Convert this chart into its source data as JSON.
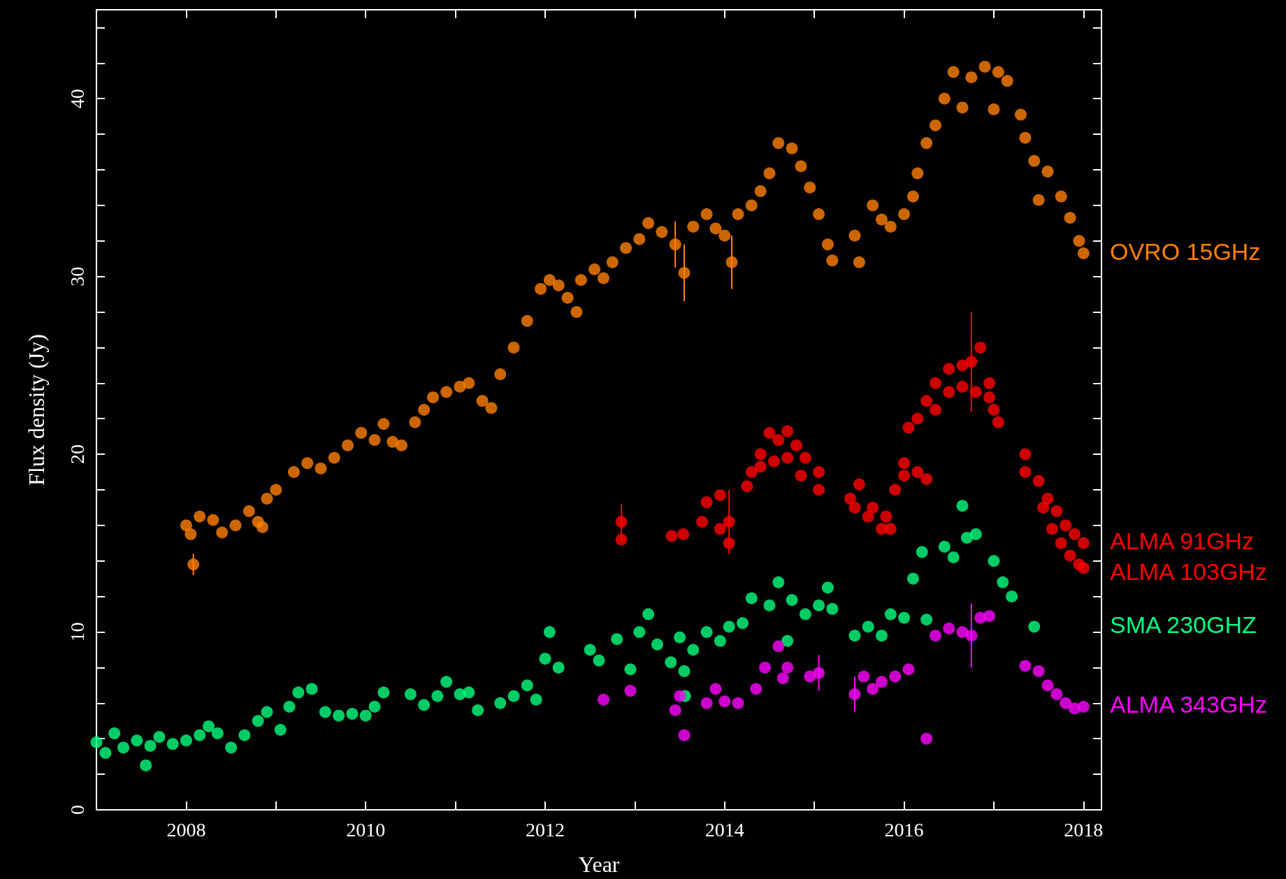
{
  "chart_data": {
    "type": "scatter",
    "xlabel": "Year",
    "ylabel": "Flux density (Jy)",
    "xlim": [
      2007,
      2018.2
    ],
    "ylim": [
      0,
      45
    ],
    "xticks": [
      {
        "value": 2007,
        "label": null
      },
      2008,
      {
        "value": 2009,
        "label": null
      },
      2010,
      {
        "value": 2011,
        "label": null
      },
      2012,
      {
        "value": 2013,
        "label": null
      },
      2014,
      {
        "value": 2015,
        "label": null
      },
      2016,
      {
        "value": 2017,
        "label": null
      },
      2018
    ],
    "yticks": [
      0,
      {
        "value": 2,
        "label": null
      },
      {
        "value": 4,
        "label": null
      },
      {
        "value": 6,
        "label": null
      },
      {
        "value": 8,
        "label": null
      },
      10,
      {
        "value": 12,
        "label": null
      },
      {
        "value": 14,
        "label": null
      },
      {
        "value": 16,
        "label": null
      },
      {
        "value": 18,
        "label": null
      },
      20,
      {
        "value": 22,
        "label": null
      },
      {
        "value": 24,
        "label": null
      },
      {
        "value": 26,
        "label": null
      },
      {
        "value": 28,
        "label": null
      },
      30,
      {
        "value": 32,
        "label": null
      },
      {
        "value": 34,
        "label": null
      },
      {
        "value": 36,
        "label": null
      },
      {
        "value": 38,
        "label": null
      },
      40,
      {
        "value": 42,
        "label": null
      },
      {
        "value": 44,
        "label": null
      }
    ],
    "grid": false,
    "legend": false,
    "marker": "circle",
    "series": [
      {
        "name": "OVRO 15GHz",
        "color": "#ff8000",
        "x": [
          2008.0,
          2008.05,
          2008.08,
          2008.15,
          2008.3,
          2008.4,
          2008.55,
          2008.7,
          2008.8,
          2008.85,
          2008.9,
          2009.0,
          2009.2,
          2009.35,
          2009.5,
          2009.65,
          2009.8,
          2009.95,
          2010.1,
          2010.2,
          2010.3,
          2010.4,
          2010.55,
          2010.65,
          2010.75,
          2010.9,
          2011.05,
          2011.15,
          2011.3,
          2011.4,
          2011.5,
          2011.65,
          2011.8,
          2011.95,
          2012.05,
          2012.15,
          2012.25,
          2012.35,
          2012.4,
          2012.55,
          2012.65,
          2012.75,
          2012.9,
          2013.05,
          2013.15,
          2013.3,
          2013.45,
          2013.55,
          2013.65,
          2013.8,
          2013.9,
          2014.0,
          2014.08,
          2014.15,
          2014.3,
          2014.4,
          2014.5,
          2014.6,
          2014.75,
          2014.85,
          2014.95,
          2015.05,
          2015.15,
          2015.2,
          2015.45,
          2015.5,
          2015.65,
          2015.75,
          2015.85,
          2016.0,
          2016.1,
          2016.15,
          2016.25,
          2016.35,
          2016.45,
          2016.55,
          2016.65,
          2016.75,
          2016.9,
          2017.0,
          2017.05,
          2017.15,
          2017.3,
          2017.35,
          2017.45,
          2017.5,
          2017.6,
          2017.75,
          2017.85,
          2017.95,
          2018.0
        ],
        "values": [
          16.0,
          15.5,
          13.8,
          16.5,
          16.3,
          15.6,
          16.0,
          16.8,
          16.2,
          15.9,
          17.5,
          18.0,
          19.0,
          19.5,
          19.2,
          19.8,
          20.5,
          21.2,
          20.8,
          21.7,
          20.7,
          20.5,
          21.8,
          22.5,
          23.2,
          23.5,
          23.8,
          24.0,
          23.0,
          22.6,
          24.5,
          26.0,
          27.5,
          29.3,
          29.8,
          29.5,
          28.8,
          28.0,
          29.8,
          30.4,
          29.9,
          30.8,
          31.6,
          32.1,
          33.0,
          32.5,
          31.8,
          30.2,
          32.8,
          33.5,
          32.7,
          32.3,
          30.8,
          33.5,
          34.0,
          34.8,
          35.8,
          37.5,
          37.2,
          36.2,
          35.0,
          33.5,
          31.8,
          30.9,
          32.3,
          30.8,
          34.0,
          33.2,
          32.8,
          33.5,
          34.5,
          35.8,
          37.5,
          38.5,
          40.0,
          41.5,
          39.5,
          41.2,
          41.8,
          39.4,
          41.5,
          41.0,
          39.1,
          37.8,
          36.5,
          34.3,
          35.9,
          34.5,
          33.3,
          32.0,
          31.3
        ],
        "errors": [
          null,
          null,
          0.6,
          null,
          null,
          null,
          null,
          null,
          null,
          null,
          null,
          null,
          null,
          null,
          null,
          null,
          null,
          null,
          null,
          null,
          null,
          null,
          null,
          null,
          null,
          null,
          null,
          null,
          null,
          null,
          null,
          null,
          null,
          null,
          null,
          null,
          null,
          null,
          null,
          null,
          null,
          null,
          null,
          null,
          null,
          null,
          1.3,
          1.6,
          null,
          null,
          null,
          null,
          1.5,
          null,
          null,
          null,
          null,
          null,
          null,
          null,
          null,
          null,
          null,
          null,
          null,
          null,
          null,
          null,
          null,
          null,
          null,
          null,
          null,
          null,
          null,
          null,
          null,
          null,
          null,
          null,
          null,
          null,
          null,
          null,
          null,
          null,
          null,
          null,
          null,
          null,
          null
        ]
      },
      {
        "name": "ALMA 91GHz",
        "color": "#ff0000",
        "x": [
          2012.85,
          2013.54,
          2013.8,
          2013.95,
          2014.05,
          2014.3,
          2014.4,
          2014.5,
          2014.6,
          2014.7,
          2014.8,
          2014.9,
          2015.05,
          2015.4,
          2015.5,
          2015.65,
          2015.8,
          2015.9,
          2016.0,
          2016.05,
          2016.15,
          2016.25,
          2016.35,
          2016.5,
          2016.65,
          2016.75,
          2016.85,
          2016.95,
          2017.0,
          2017.35,
          2017.5,
          2017.6,
          2017.7,
          2017.8,
          2017.9,
          2018.0
        ],
        "values": [
          16.2,
          15.5,
          17.3,
          17.7,
          16.2,
          19.0,
          20.0,
          21.2,
          20.8,
          21.3,
          20.5,
          19.8,
          19.0,
          17.5,
          18.3,
          17.0,
          16.5,
          18.0,
          19.5,
          21.5,
          22.0,
          23.0,
          24.0,
          24.8,
          25.0,
          25.2,
          26.0,
          24.0,
          22.5,
          20.0,
          18.5,
          17.5,
          16.8,
          16.0,
          15.5,
          15.0
        ],
        "errors": [
          1.0,
          null,
          null,
          null,
          1.8,
          null,
          null,
          null,
          null,
          null,
          null,
          null,
          null,
          null,
          null,
          null,
          null,
          null,
          null,
          null,
          null,
          null,
          null,
          null,
          null,
          2.8,
          null,
          null,
          null,
          null,
          null,
          null,
          null,
          null,
          null,
          null
        ]
      },
      {
        "name": "ALMA 103GHz",
        "color": "#ff0000",
        "x": [
          2012.85,
          2013.41,
          2013.75,
          2013.95,
          2014.05,
          2014.25,
          2014.4,
          2014.55,
          2014.7,
          2014.85,
          2015.05,
          2015.45,
          2015.6,
          2015.75,
          2015.85,
          2016.0,
          2016.15,
          2016.25,
          2016.35,
          2016.5,
          2016.65,
          2016.8,
          2016.95,
          2017.05,
          2017.35,
          2017.55,
          2017.65,
          2017.75,
          2017.85,
          2017.95,
          2018.0
        ],
        "values": [
          15.2,
          15.4,
          16.2,
          15.8,
          15.0,
          18.2,
          19.3,
          19.6,
          19.8,
          18.8,
          18.0,
          17.0,
          16.5,
          15.8,
          15.8,
          18.8,
          19.0,
          18.6,
          22.5,
          23.5,
          23.8,
          23.5,
          23.2,
          21.8,
          19.0,
          17.0,
          15.8,
          15.0,
          14.3,
          13.8,
          13.6
        ]
      },
      {
        "name": "SMA 230GHZ",
        "color": "#00ff80",
        "x": [
          2007.0,
          2007.1,
          2007.2,
          2007.3,
          2007.45,
          2007.55,
          2007.6,
          2007.7,
          2007.85,
          2008.0,
          2008.15,
          2008.25,
          2008.35,
          2008.5,
          2008.65,
          2008.8,
          2008.9,
          2009.05,
          2009.15,
          2009.25,
          2009.4,
          2009.55,
          2009.7,
          2009.85,
          2010.0,
          2010.1,
          2010.2,
          2010.5,
          2010.65,
          2010.8,
          2010.9,
          2011.05,
          2011.15,
          2011.25,
          2011.5,
          2011.65,
          2011.8,
          2011.9,
          2012.0,
          2012.05,
          2012.15,
          2012.5,
          2012.6,
          2012.8,
          2012.95,
          2013.05,
          2013.15,
          2013.25,
          2013.4,
          2013.5,
          2013.55,
          2013.56,
          2013.65,
          2013.8,
          2013.95,
          2014.05,
          2014.2,
          2014.3,
          2014.5,
          2014.6,
          2014.7,
          2014.75,
          2014.9,
          2015.05,
          2015.15,
          2015.2,
          2015.45,
          2015.6,
          2015.75,
          2015.85,
          2016.0,
          2016.1,
          2016.2,
          2016.25,
          2016.45,
          2016.55,
          2016.65,
          2016.7,
          2016.8,
          2017.0,
          2017.1,
          2017.2,
          2017.45
        ],
        "values": [
          3.8,
          3.2,
          4.3,
          3.5,
          3.9,
          2.5,
          3.6,
          4.1,
          3.7,
          3.9,
          4.2,
          4.7,
          4.3,
          3.5,
          4.2,
          5.0,
          5.5,
          4.5,
          5.8,
          6.6,
          6.8,
          5.5,
          5.3,
          5.4,
          5.3,
          5.8,
          6.6,
          6.5,
          5.9,
          6.4,
          7.2,
          6.5,
          6.6,
          5.6,
          6.0,
          6.4,
          7.0,
          6.2,
          8.5,
          10.0,
          8.0,
          9.0,
          8.4,
          9.6,
          7.9,
          10.0,
          11.0,
          9.3,
          8.3,
          9.7,
          7.8,
          6.4,
          9.0,
          10.0,
          9.5,
          10.3,
          10.5,
          11.9,
          11.5,
          12.8,
          9.5,
          11.8,
          11.0,
          11.5,
          12.5,
          11.3,
          9.8,
          10.3,
          9.8,
          11.0,
          10.8,
          13.0,
          14.5,
          10.7,
          14.8,
          14.2,
          17.1,
          15.3,
          15.5,
          14.0,
          12.8,
          12.0,
          10.3
        ]
      },
      {
        "name": "ALMA 343GHz",
        "color": "#ff00ff",
        "x": [
          2012.65,
          2012.95,
          2013.45,
          2013.5,
          2013.55,
          2013.8,
          2013.9,
          2014.0,
          2014.15,
          2014.35,
          2014.45,
          2014.6,
          2014.65,
          2014.7,
          2014.95,
          2015.05,
          2015.45,
          2015.55,
          2015.65,
          2015.75,
          2015.9,
          2016.05,
          2016.25,
          2016.35,
          2016.5,
          2016.65,
          2016.75,
          2016.85,
          2016.95,
          2017.35,
          2017.5,
          2017.6,
          2017.7,
          2017.8,
          2017.9,
          2018.0
        ],
        "values": [
          6.2,
          6.7,
          5.6,
          6.4,
          4.2,
          6.0,
          6.8,
          6.1,
          6.0,
          6.8,
          8.0,
          9.2,
          7.4,
          8.0,
          7.5,
          7.7,
          6.5,
          7.5,
          6.8,
          7.2,
          7.5,
          7.9,
          4.0,
          9.8,
          10.2,
          10.0,
          9.8,
          10.8,
          10.9,
          8.1,
          7.8,
          7.0,
          6.5,
          6.0,
          5.7,
          5.8
        ],
        "errors": [
          null,
          null,
          null,
          null,
          null,
          null,
          null,
          null,
          null,
          null,
          null,
          null,
          null,
          null,
          null,
          1.0,
          1.0,
          null,
          null,
          null,
          null,
          null,
          null,
          null,
          null,
          null,
          1.8,
          null,
          null,
          null,
          null,
          null,
          null,
          null,
          null,
          null
        ]
      }
    ]
  }
}
